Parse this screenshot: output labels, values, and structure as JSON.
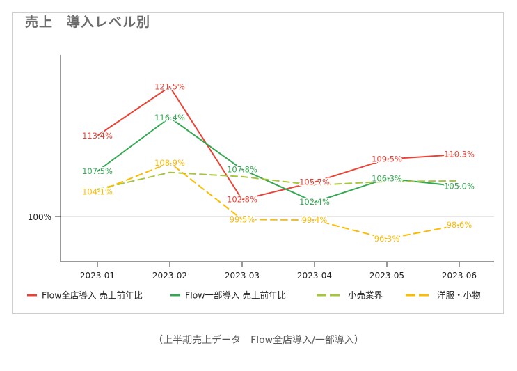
{
  "chart_data": {
    "type": "line",
    "title": "売上　導入レベル別",
    "categories": [
      "2023-01",
      "2023-02",
      "2023-03",
      "2023-04",
      "2023-05",
      "2023-06"
    ],
    "reference_line": {
      "value": 100,
      "label": "100%"
    },
    "ylim": [
      92.5,
      127
    ],
    "grid": false,
    "legend_position": "bottom",
    "series": [
      {
        "name": "Flow全店導入 売上前年比",
        "color": "#ea4335",
        "dashed": false,
        "values": [
          113.4,
          121.5,
          102.8,
          105.7,
          109.5,
          110.3
        ],
        "labels": [
          "113.4%",
          "121.5%",
          "102.8%",
          "105.7%",
          "109.5%",
          "110.3%"
        ]
      },
      {
        "name": "Flow一部導入 売上前年比",
        "color": "#34a853",
        "dashed": false,
        "values": [
          107.5,
          116.4,
          107.8,
          102.4,
          106.3,
          105.0
        ],
        "labels": [
          "107.5%",
          "116.4%",
          "107.8%",
          "102.4%",
          "106.3%",
          "105.0%"
        ]
      },
      {
        "name": "小売業界",
        "color": "#a5c63b",
        "dashed": true,
        "values": [
          104.5,
          107.3,
          106.6,
          105.2,
          105.8,
          105.9
        ],
        "labels": []
      },
      {
        "name": "洋服・小物",
        "color": "#fbbc04",
        "dashed": true,
        "values": [
          104.1,
          108.9,
          99.5,
          99.4,
          96.3,
          98.6
        ],
        "labels": [
          "104.1%",
          "108.9%",
          "99.5%",
          "99.4%",
          "96.3%",
          "98.6%"
        ]
      }
    ]
  },
  "caption": "（上半期売上データ　Flow全店導入/一部導入）"
}
